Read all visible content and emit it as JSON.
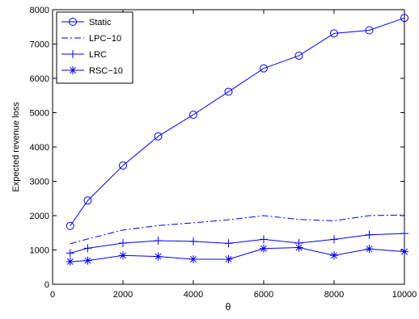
{
  "chart_data": {
    "type": "line",
    "title": "",
    "xlabel": "θ",
    "ylabel": "Expected revenue loss",
    "xlim": [
      0,
      10000
    ],
    "ylim": [
      0,
      8000
    ],
    "xticks": [
      0,
      2000,
      4000,
      6000,
      8000,
      10000
    ],
    "yticks": [
      0,
      1000,
      2000,
      3000,
      4000,
      5000,
      6000,
      7000,
      8000
    ],
    "grid": false,
    "legend_position": "top-left",
    "x": [
      500,
      1000,
      2000,
      3000,
      4000,
      5000,
      6000,
      7000,
      8000,
      9000,
      10000
    ],
    "series": [
      {
        "name": "Static",
        "marker": "circle",
        "line_style": "solid",
        "color": "#0000ff",
        "values": [
          1700,
          2440,
          3460,
          4310,
          4940,
          5610,
          6290,
          6660,
          7310,
          7400,
          7760
        ]
      },
      {
        "name": "LPC−10",
        "marker": "none",
        "line_style": "dash-dot",
        "color": "#0000ff",
        "values": [
          1180,
          1320,
          1580,
          1710,
          1790,
          1880,
          2000,
          1890,
          1850,
          2000,
          2020
        ]
      },
      {
        "name": "LRC",
        "marker": "plus",
        "line_style": "solid",
        "color": "#0000ff",
        "values": [
          910,
          1050,
          1200,
          1270,
          1250,
          1190,
          1310,
          1200,
          1310,
          1440,
          1480
        ]
      },
      {
        "name": "RSC−10",
        "marker": "asterisk",
        "line_style": "solid",
        "color": "#0000ff",
        "values": [
          660,
          690,
          840,
          810,
          730,
          730,
          1040,
          1070,
          840,
          1030,
          950
        ]
      }
    ]
  }
}
